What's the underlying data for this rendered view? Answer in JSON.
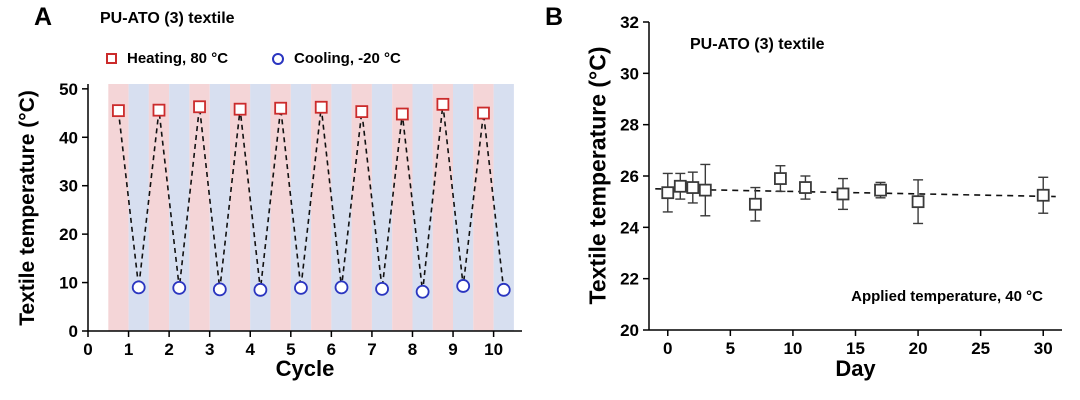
{
  "figure": {
    "panelA": {
      "label": "A"
    },
    "panelB": {
      "label": "B"
    }
  },
  "chart_data": [
    {
      "id": "thermal-cycling",
      "type": "scatter",
      "title": "PU-ATO (3) textile",
      "xlabel": "Cycle",
      "ylabel": "Textile temperature (°C)",
      "xlim": [
        0,
        10.7
      ],
      "ylim": [
        0,
        51
      ],
      "xticks": [
        0,
        1,
        2,
        3,
        4,
        5,
        6,
        7,
        8,
        9,
        10
      ],
      "yticks": [
        0,
        10,
        20,
        30,
        40,
        50
      ],
      "grid": false,
      "legend_position": "top",
      "band_colors": [
        "#f4d5d7",
        "#d7dff0"
      ],
      "bands": {
        "start": 0.5,
        "end": 10.5,
        "width": 0.5
      },
      "connector": {
        "style": "dashed",
        "color": "#111111"
      },
      "series": [
        {
          "name": "Heating, 80 °C",
          "marker": "square",
          "color": "#cb2b2b",
          "x": [
            0.75,
            1.75,
            2.75,
            3.75,
            4.75,
            5.75,
            6.75,
            7.75,
            8.75,
            9.75
          ],
          "y": [
            45.5,
            45.6,
            46.3,
            45.8,
            46.0,
            46.2,
            45.3,
            44.8,
            46.8,
            45.0
          ]
        },
        {
          "name": "Cooling, -20 °C",
          "marker": "circle",
          "color": "#2a35c0",
          "x": [
            1.25,
            2.25,
            3.25,
            4.25,
            5.25,
            6.25,
            7.25,
            8.25,
            9.25,
            10.25
          ],
          "y": [
            9.0,
            8.9,
            8.6,
            8.5,
            8.9,
            9.0,
            8.7,
            8.1,
            9.3,
            8.5
          ]
        }
      ]
    },
    {
      "id": "long-term-stability",
      "type": "scatter",
      "title": "PU-ATO (3) textile",
      "xlabel": "Day",
      "ylabel": "Textile temperature (°C)",
      "annotation": "Applied temperature, 40 °C",
      "xlim": [
        -1.5,
        31.5
      ],
      "ylim": [
        20,
        32
      ],
      "xticks": [
        0,
        5,
        10,
        15,
        20,
        25,
        30
      ],
      "yticks": [
        20,
        22,
        24,
        26,
        28,
        30,
        32
      ],
      "grid": false,
      "trendline": {
        "style": "dashed",
        "color": "#111111",
        "x": [
          -1,
          31
        ],
        "y": [
          25.5,
          25.2
        ]
      },
      "series": [
        {
          "name": "Textile temperature",
          "marker": "square",
          "color": "#3a3a3a",
          "x": [
            0,
            1,
            2,
            3,
            7,
            9,
            11,
            14,
            17,
            20,
            30
          ],
          "y": [
            25.35,
            25.6,
            25.55,
            25.45,
            24.9,
            25.9,
            25.55,
            25.3,
            25.45,
            25.0,
            25.25
          ],
          "yerr": [
            0.75,
            0.5,
            0.6,
            1.0,
            0.65,
            0.5,
            0.45,
            0.6,
            0.3,
            0.85,
            0.7
          ]
        }
      ]
    }
  ]
}
